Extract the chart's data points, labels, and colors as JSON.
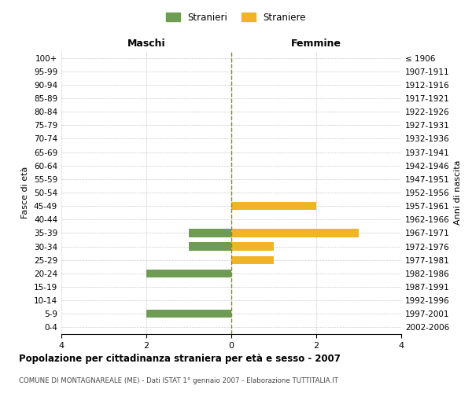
{
  "age_groups": [
    "100+",
    "95-99",
    "90-94",
    "85-89",
    "80-84",
    "75-79",
    "70-74",
    "65-69",
    "60-64",
    "55-59",
    "50-54",
    "45-49",
    "40-44",
    "35-39",
    "30-34",
    "25-29",
    "20-24",
    "15-19",
    "10-14",
    "5-9",
    "0-4"
  ],
  "birth_years": [
    "≤ 1906",
    "1907-1911",
    "1912-1916",
    "1917-1921",
    "1922-1926",
    "1927-1931",
    "1932-1936",
    "1937-1941",
    "1942-1946",
    "1947-1951",
    "1952-1956",
    "1957-1961",
    "1962-1966",
    "1967-1971",
    "1972-1976",
    "1977-1981",
    "1982-1986",
    "1987-1991",
    "1992-1996",
    "1997-2001",
    "2002-2006"
  ],
  "maschi_stranieri": [
    0,
    0,
    0,
    0,
    0,
    0,
    0,
    0,
    0,
    0,
    0,
    0,
    0,
    1,
    1,
    0,
    2,
    0,
    0,
    2,
    0
  ],
  "femmine_straniere": [
    0,
    0,
    0,
    0,
    0,
    0,
    0,
    0,
    0,
    0,
    0,
    2,
    0,
    3,
    1,
    1,
    0,
    0,
    0,
    0,
    0
  ],
  "color_maschi": "#6e9c52",
  "color_femmine": "#f0b429",
  "title": "Popolazione per cittadinanza straniera per età e sesso - 2007",
  "subtitle": "COMUNE DI MONTAGNAREALE (ME) - Dati ISTAT 1° gennaio 2007 - Elaborazione TUTTITALIA.IT",
  "label_maschi": "Maschi",
  "label_femmine": "Femmine",
  "ylabel_left": "Fasce di età",
  "ylabel_right": "Anni di nascita",
  "legend_maschi": "Stranieri",
  "legend_femmine": "Straniere",
  "xlim": 4,
  "bg_color": "#ffffff",
  "grid_color": "#cccccc",
  "bar_height": 0.6
}
